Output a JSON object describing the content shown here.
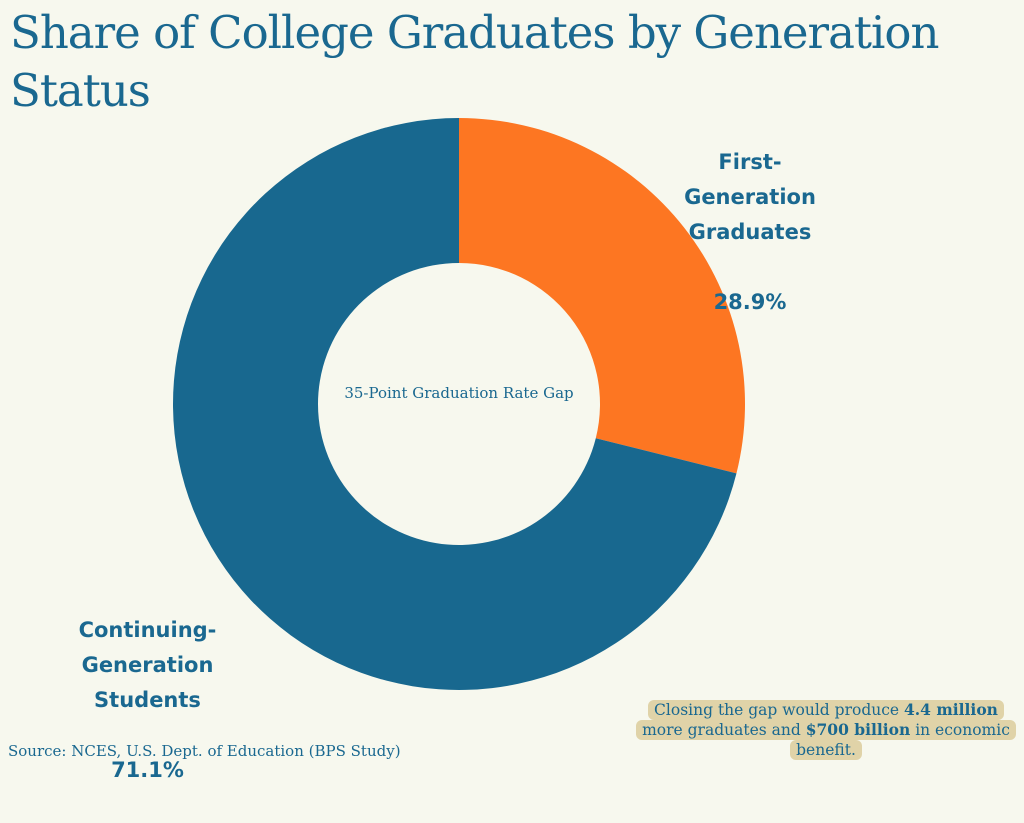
{
  "chart_data": {
    "type": "pie",
    "variant": "donut",
    "title": "Share of College Graduates by Generation Status",
    "center_label": "35-Point Graduation Rate Gap",
    "slices": [
      {
        "label": "First-Generation Graduates",
        "label_lines": "First-\nGeneration\nGraduates",
        "value": 28.9,
        "value_label": "28.9%",
        "color": "#fd7622"
      },
      {
        "label": "Continuing-Generation Students",
        "label_lines": "Continuing-\nGeneration\nStudents",
        "value": 71.1,
        "value_label": "71.1%",
        "color": "#18688f"
      }
    ],
    "source": "Source: NCES, U.S. Dept. of Education (BPS Study)",
    "annotation": {
      "parts": [
        {
          "text": "Closing the gap would produce ",
          "bold": false
        },
        {
          "text": "4.4 million",
          "bold": true
        },
        {
          "text": " more graduates and ",
          "bold": false
        },
        {
          "text": "$700 billion",
          "bold": true
        },
        {
          "text": " in economic benefit.",
          "bold": false
        }
      ]
    }
  },
  "colors": {
    "background": "#f7f8ee",
    "text": "#1a6890",
    "annotation_bg": "#e0d3a8"
  }
}
